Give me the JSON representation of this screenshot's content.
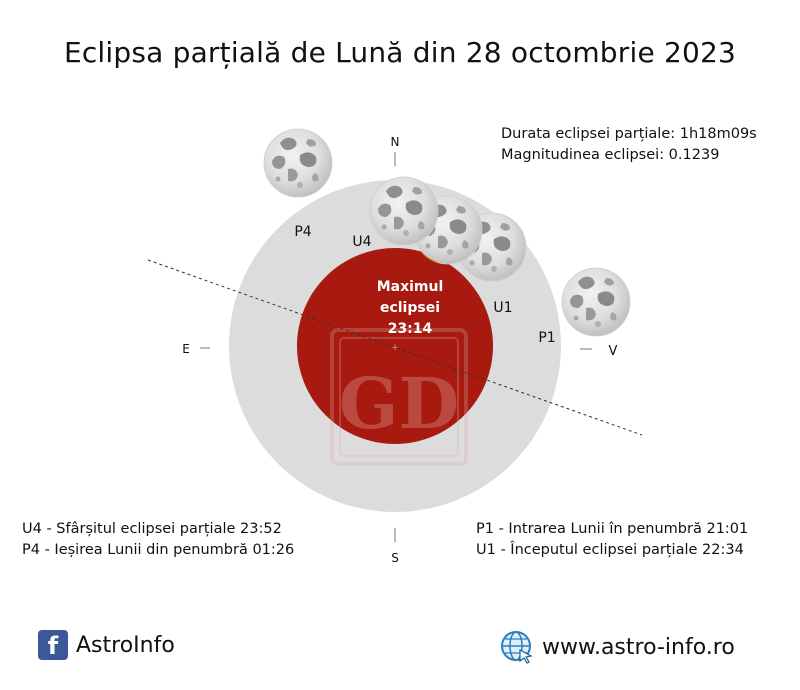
{
  "title": "Eclipsa parțială de Lună din 28 octombrie 2023",
  "stats": {
    "duration": "Durata eclipsei parțiale: 1h18m09s",
    "magnitude": "Magnitudinea eclipsei: 0.1239"
  },
  "directions": {
    "north": "N",
    "south": "S",
    "east": "E",
    "west": "V"
  },
  "moon_labels": {
    "p1": "P1",
    "u1": "U1",
    "u4": "U4",
    "p4": "P4"
  },
  "maximum": {
    "line1": "Maximul",
    "line2": "eclipsei",
    "time": "23:14"
  },
  "legend": {
    "u4": "U4 - Sfârșitul eclipsei parțiale 23:52",
    "p4": "P4 - Ieșirea Lunii din penumbră 01:26",
    "p1": "P1 - Intrarea Lunii în penumbră 21:01",
    "u1": "U1 - Începutul eclipsei parțiale 22:34"
  },
  "footer": {
    "facebook_icon_letter": "f",
    "facebook_label": "AstroInfo",
    "website": "www.astro-info.ro"
  },
  "watermark": "GD",
  "colors": {
    "penumbra": "#dcdcdc",
    "umbra": "#a8190f",
    "eclipsed_part": "#e8801a",
    "facebook": "#3b5998"
  }
}
